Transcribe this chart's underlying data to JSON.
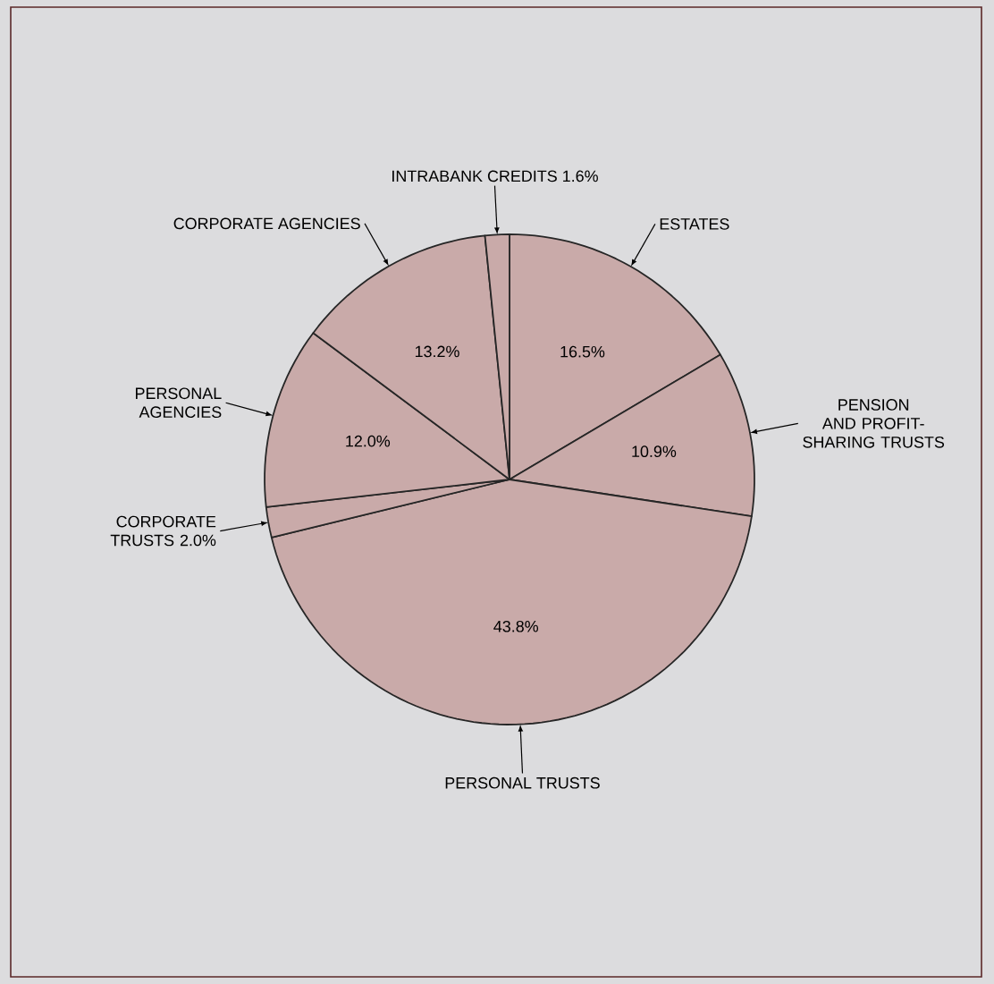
{
  "chart_data": {
    "type": "pie",
    "categories": [
      "ESTATES",
      "PENSION AND PROFIT-SHARING TRUSTS",
      "PERSONAL TRUSTS",
      "CORPORATE TRUSTS",
      "PERSONAL AGENCIES",
      "CORPORATE AGENCIES",
      "INTRABANK CREDITS"
    ],
    "values": [
      16.5,
      10.9,
      43.8,
      2.0,
      12.0,
      13.2,
      1.6
    ],
    "value_labels": [
      "16.5%",
      "10.9%",
      "43.8%",
      "2.0%",
      "12.0%",
      "13.2%",
      "1.6%"
    ],
    "colors": [
      "#c9aaa9",
      "#c9aaa9",
      "#c9aaa9",
      "#c9aaa9",
      "#c9aaa9",
      "#c9aaa9",
      "#c9aaa9"
    ]
  }
}
